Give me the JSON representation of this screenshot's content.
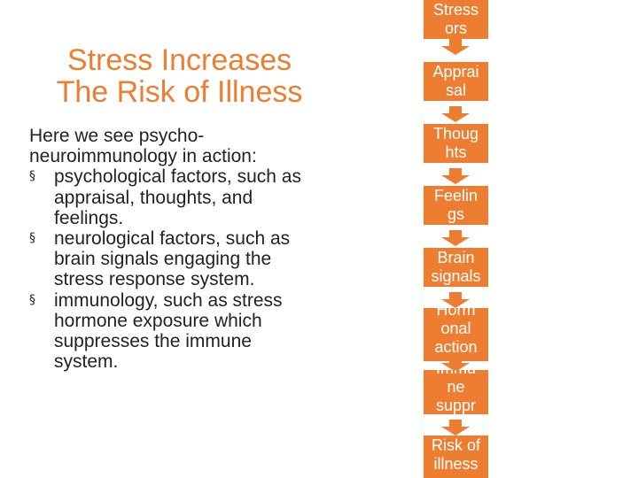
{
  "slide": {
    "title_lines": [
      "Stress Increases",
      "The Risk of Illness"
    ],
    "intro_lines": [
      "Here we see psycho-",
      "neuroimmunology in action:"
    ],
    "bullet_marker": "§",
    "bullets": [
      {
        "lines": [
          "psychological factors, such as",
          "appraisal, thoughts, and",
          "feelings."
        ]
      },
      {
        "lines": [
          "neurological factors, such as",
          "brain signals engaging the",
          "stress response system."
        ]
      },
      {
        "lines": [
          "immunology, such as stress",
          "hormone exposure which",
          "suppresses the immune",
          "system."
        ]
      }
    ]
  },
  "flow": {
    "steps": [
      {
        "lines": [
          "Stress",
          "ors"
        ]
      },
      {
        "lines": [
          "Apprai",
          "sal"
        ]
      },
      {
        "lines": [
          "Thoug",
          "hts"
        ]
      },
      {
        "lines": [
          "Feelin",
          "gs"
        ]
      },
      {
        "lines": [
          "Brain",
          "signals"
        ]
      },
      {
        "lines": [
          "Horm",
          "onal",
          "action"
        ]
      },
      {
        "lines": [
          "Immu",
          "ne",
          "suppr"
        ]
      },
      {
        "lines": [
          "Risk of",
          "illness"
        ]
      }
    ]
  },
  "colors": {
    "accent": "#ED7D31",
    "text": "#222222"
  }
}
